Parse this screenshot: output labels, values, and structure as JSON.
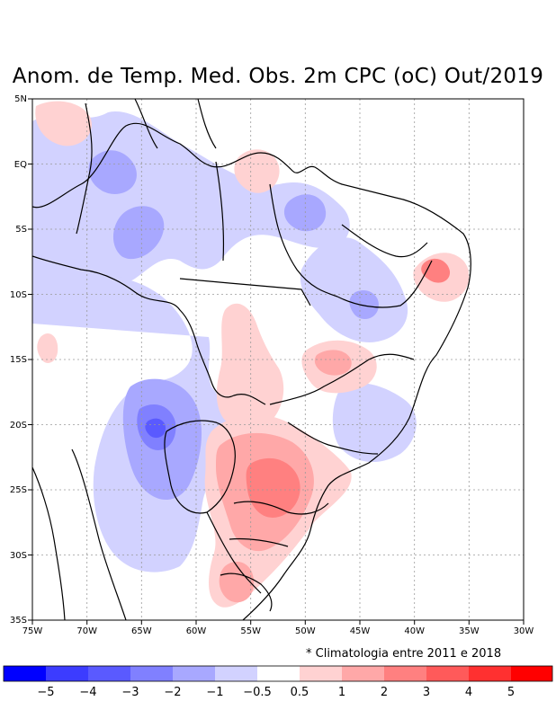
{
  "title": "Anom. de Temp. Med. Obs. 2m CPC (oC) Out/2019",
  "note": "* Climatologia entre 2011 e 2018",
  "lat_labels": [
    "5N",
    "EQ",
    "5S",
    "10S",
    "15S",
    "20S",
    "25S",
    "30S",
    "35S"
  ],
  "lon_labels": [
    "75W",
    "70W",
    "65W",
    "60W",
    "55W",
    "50W",
    "45W",
    "40W",
    "35W",
    "30W"
  ],
  "colorbar": {
    "colors": [
      "#0000ff",
      "#3c3cff",
      "#5a5aff",
      "#8080ff",
      "#a8a8ff",
      "#d2d2ff",
      "#ffffff",
      "#ffd2d2",
      "#ffa8a8",
      "#ff8080",
      "#ff5a5a",
      "#ff3030",
      "#ff0000"
    ],
    "labels": [
      "−5",
      "−4",
      "−3",
      "−2",
      "−1",
      "−0.5",
      "0.5",
      "1",
      "2",
      "3",
      "4",
      "5"
    ]
  },
  "anomaly_colors": {
    "neg_light": "#d2d2ff",
    "neg_mid": "#a8a8ff",
    "neg_strong": "#8080ff",
    "neg_max": "#5a5aff",
    "pos_light": "#ffd2d2",
    "pos_mid": "#ffa8a8",
    "pos_strong": "#ff8080"
  }
}
